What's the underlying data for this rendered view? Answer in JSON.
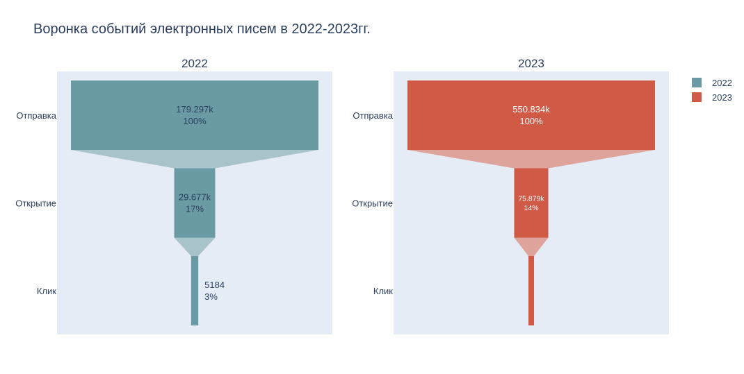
{
  "chart_data": {
    "type": "funnel",
    "title": "Воронка событий электронных писем в 2022-2023гг.",
    "categories": [
      "Отправка",
      "Открытие",
      "Клик"
    ],
    "plot_background": "#e5ecf6",
    "legend": {
      "placement": "top-right",
      "entries": [
        {
          "name": "2022",
          "color": "#6a9aa3"
        },
        {
          "name": "2023",
          "color": "#d15a47"
        }
      ]
    },
    "panels": [
      {
        "title": "2022",
        "series_name": "2022",
        "color": "#6a9aa3",
        "connector_color": "#a9c3cb",
        "values": [
          179297,
          29677,
          5184
        ],
        "value_labels": [
          "179.297k",
          "29.677k",
          "5184"
        ],
        "percent_labels": [
          "100%",
          "17%",
          "3%"
        ]
      },
      {
        "title": "2023",
        "series_name": "2023",
        "color": "#d15a47",
        "connector_color": "#dea39b",
        "values": [
          550834,
          75879,
          0
        ],
        "value_labels": [
          "550.834k",
          "75.879k",
          ""
        ],
        "percent_labels": [
          "100%",
          "14%",
          ""
        ]
      }
    ]
  }
}
